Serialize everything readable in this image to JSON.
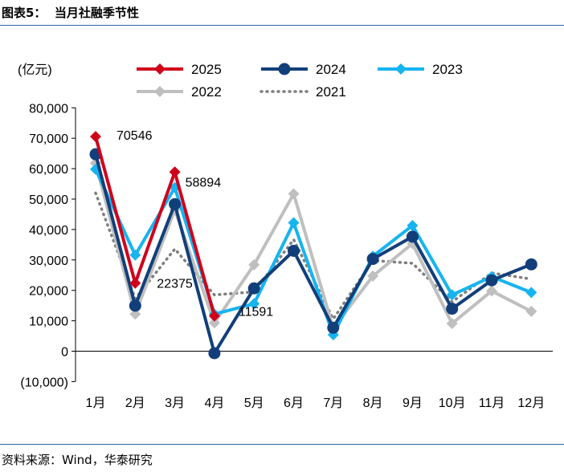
{
  "header": {
    "figure_label": "图表5：",
    "title": "当月社融季节性"
  },
  "footer": {
    "source": "资料来源：Wind，华泰研究"
  },
  "chart_data": {
    "type": "line",
    "ylabel": "(亿元)",
    "ylim": [
      -10000,
      80000
    ],
    "yticks": [
      -10000,
      0,
      10000,
      20000,
      30000,
      40000,
      50000,
      60000,
      70000,
      80000
    ],
    "ytick_labels": [
      "(10,000)",
      "0",
      "10,000",
      "20,000",
      "30,000",
      "40,000",
      "50,000",
      "60,000",
      "70,000",
      "80,000"
    ],
    "categories": [
      "1月",
      "2月",
      "3月",
      "4月",
      "5月",
      "6月",
      "7月",
      "8月",
      "9月",
      "10月",
      "11月",
      "12月"
    ],
    "legend_position": "top",
    "series": [
      {
        "name": "2025",
        "color": "#d0021b",
        "marker": "diamond",
        "dash": "solid",
        "values": [
          70546,
          22375,
          58894,
          11591,
          null,
          null,
          null,
          null,
          null,
          null,
          null,
          null
        ]
      },
      {
        "name": "2024",
        "color": "#123f7a",
        "marker": "circle",
        "dash": "solid",
        "values": [
          64734,
          14956,
          48334,
          -658,
          20648,
          32985,
          7708,
          30323,
          37634,
          13959,
          23288,
          28538
        ]
      },
      {
        "name": "2023",
        "color": "#16b4f0",
        "marker": "diamond",
        "dash": "solid",
        "values": [
          59800,
          31600,
          53800,
          12200,
          15600,
          42200,
          5400,
          31200,
          41300,
          18500,
          24500,
          19300
        ]
      },
      {
        "name": "2022",
        "color": "#bfbfbf",
        "marker": "diamond",
        "dash": "solid",
        "values": [
          61800,
          12200,
          46500,
          9300,
          28400,
          51700,
          7600,
          24700,
          35400,
          9100,
          19800,
          13100
        ]
      },
      {
        "name": "2021",
        "color": "#7f7f7f",
        "marker": "none",
        "dash": "dotted",
        "values": [
          52000,
          17300,
          33600,
          18500,
          19500,
          36700,
          10600,
          29800,
          28900,
          16200,
          25700,
          23700
        ]
      }
    ],
    "annotations": [
      {
        "text": "70546",
        "series": "2025",
        "index": 0
      },
      {
        "text": "58894",
        "series": "2025",
        "index": 2
      },
      {
        "text": "22375",
        "series": "2025",
        "index": 1
      },
      {
        "text": "11591",
        "series": "2025",
        "index": 3
      }
    ]
  }
}
